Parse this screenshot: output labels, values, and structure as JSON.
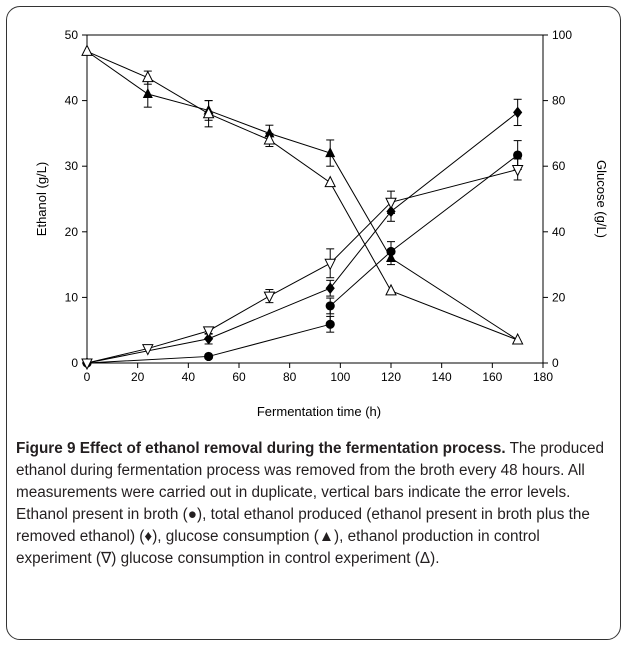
{
  "chart_data": {
    "type": "line",
    "xlabel": "Fermentation time (h)",
    "ylabel_left": "Ethanol (g/L)",
    "ylabel_right": "Glucose (g/L)",
    "xlim": [
      0,
      180
    ],
    "ylim_left": [
      0,
      50
    ],
    "ylim_right": [
      0,
      100
    ],
    "x_ticks": [
      "0",
      "20",
      "40",
      "60",
      "80",
      "100",
      "120",
      "140",
      "160",
      "180"
    ],
    "y_left_ticks": [
      "0",
      "10",
      "20",
      "30",
      "40",
      "50"
    ],
    "y_right_ticks": [
      "0",
      "20",
      "40",
      "60",
      "80",
      "100"
    ],
    "grid": false,
    "series": [
      {
        "symbol": "circle-filled",
        "axis": "left",
        "points": [
          {
            "x": 0,
            "y": 0
          },
          {
            "x": 48,
            "y": 1.0
          },
          {
            "x": 96,
            "y": 5.9,
            "err": 1.2
          },
          {
            "x": 96,
            "y": 8.7,
            "err": 1.2
          },
          {
            "x": 120,
            "y": 17.0,
            "err": 1.5
          },
          {
            "x": 170,
            "y": 31.7,
            "err": 2.2
          }
        ]
      },
      {
        "symbol": "diamond-filled",
        "axis": "left",
        "points": [
          {
            "x": 0,
            "y": 0
          },
          {
            "x": 48,
            "y": 3.7,
            "err": 0.8
          },
          {
            "x": 96,
            "y": 11.4,
            "err": 1.2
          },
          {
            "x": 120,
            "y": 23.1,
            "err": 1.5
          },
          {
            "x": 170,
            "y": 38.2,
            "err": 2.0
          }
        ]
      },
      {
        "symbol": "triangle-up-filled",
        "axis": "right",
        "points": [
          {
            "x": 0,
            "y": 95
          },
          {
            "x": 24,
            "y": 82,
            "err": 4
          },
          {
            "x": 48,
            "y": 77,
            "err": 3
          },
          {
            "x": 72,
            "y": 70,
            "err": 2.5
          },
          {
            "x": 96,
            "y": 64,
            "err": 4
          },
          {
            "x": 120,
            "y": 32,
            "err": 2
          },
          {
            "x": 170,
            "y": 7
          }
        ]
      },
      {
        "symbol": "triangle-down-open",
        "axis": "left",
        "points": [
          {
            "x": 0,
            "y": 0
          },
          {
            "x": 24,
            "y": 2.2
          },
          {
            "x": 48,
            "y": 4.9,
            "err": 0.5
          },
          {
            "x": 72,
            "y": 10.2,
            "err": 1.0
          },
          {
            "x": 96,
            "y": 15.2,
            "err": 2.2
          },
          {
            "x": 120,
            "y": 24.5,
            "err": 1.7
          },
          {
            "x": 170,
            "y": 29.5,
            "err": 1.6
          }
        ]
      },
      {
        "symbol": "triangle-up-open",
        "axis": "right",
        "points": [
          {
            "x": 0,
            "y": 95
          },
          {
            "x": 24,
            "y": 87,
            "err": 2
          },
          {
            "x": 48,
            "y": 76,
            "err": 4
          },
          {
            "x": 72,
            "y": 68,
            "err": 2
          },
          {
            "x": 96,
            "y": 55
          },
          {
            "x": 120,
            "y": 22
          },
          {
            "x": 170,
            "y": 7
          }
        ]
      }
    ]
  },
  "caption": {
    "bold": "Figure 9 Effect of ethanol removal during the fermentation process.",
    "text": " The produced ethanol during fermentation process was removed from the broth every 48 hours. All measurements were carried out in duplicate, vertical bars indicate the error levels. Ethanol present in broth (●), total ethanol produced (ethanol present in broth plus the removed ethanol) (♦), glucose consumption (▲), ethanol production in control experiment (∇) glucose consumption in control experiment (Δ)."
  }
}
